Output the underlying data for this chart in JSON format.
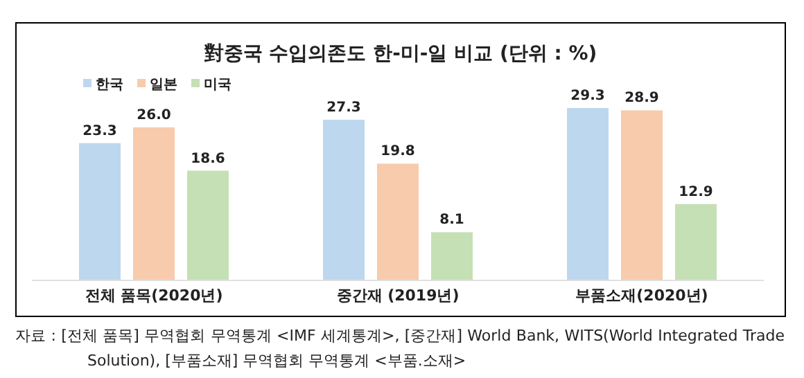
{
  "chart_data": {
    "type": "bar",
    "title": "對중국 수입의존도 한-미-일 비교 (단위 : %)",
    "categories": [
      "전체 품목(2020년)",
      "중간재 (2019년)",
      "부품소재(2020년)"
    ],
    "series": [
      {
        "name": "한국",
        "color": "#bdd7ee",
        "values": [
          23.3,
          27.3,
          29.3
        ],
        "value_labels": [
          "23.3",
          "27.3",
          "29.3"
        ]
      },
      {
        "name": "일본",
        "color": "#f8cbad",
        "values": [
          26.0,
          19.8,
          28.9
        ],
        "value_labels": [
          "26.0",
          "19.8",
          "28.9"
        ]
      },
      {
        "name": "미국",
        "color": "#c5e0b4",
        "values": [
          18.6,
          8.1,
          12.9
        ],
        "value_labels": [
          "18.6",
          "8.1",
          "12.9"
        ]
      }
    ],
    "legend": "top left",
    "annotations": [
      "자료 : [전체 품목] 무역협회 무역통계 <IMF 세계통계>, [중간재] World Bank, WITS(World Integrated Trade Solution), [부품소재] 무역협회 무역통계 <부품.소재>"
    ]
  }
}
